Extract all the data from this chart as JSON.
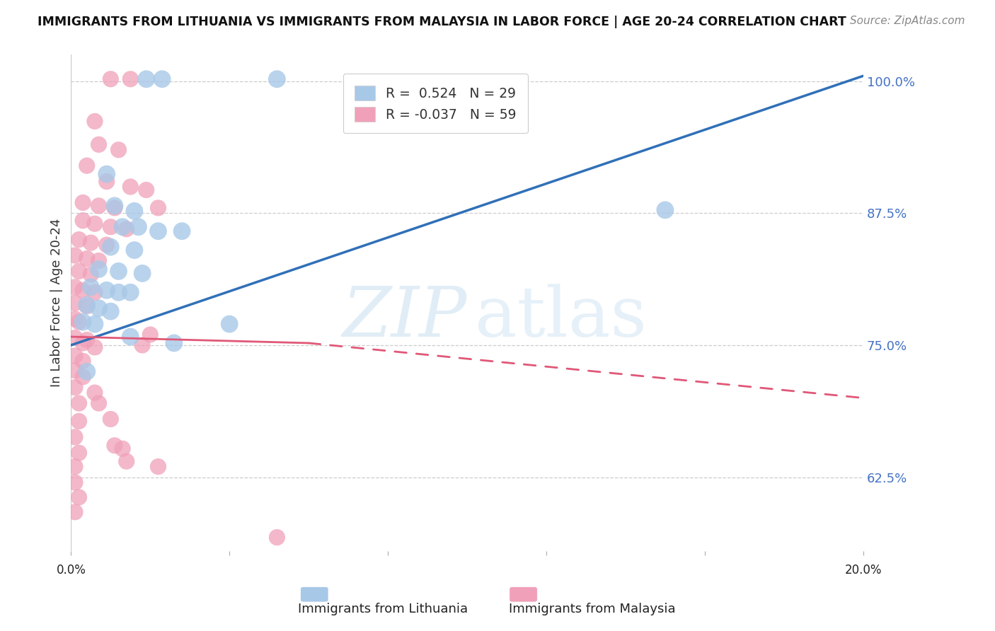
{
  "title": "IMMIGRANTS FROM LITHUANIA VS IMMIGRANTS FROM MALAYSIA IN LABOR FORCE | AGE 20-24 CORRELATION CHART",
  "source": "Source: ZipAtlas.com",
  "ylabel": "In Labor Force | Age 20-24",
  "ylabel_ticks": [
    "100.0%",
    "87.5%",
    "75.0%",
    "62.5%"
  ],
  "ylabel_tick_vals": [
    1.0,
    0.875,
    0.75,
    0.625
  ],
  "xlim": [
    0.0,
    0.2
  ],
  "ylim": [
    0.555,
    1.025
  ],
  "color_blue": "#a8c8e8",
  "color_pink": "#f0a0b8",
  "line_blue": "#3070b8",
  "line_pink": "#e05878",
  "blue_line_x0": 0.0,
  "blue_line_y0": 0.75,
  "blue_line_x1": 0.2,
  "blue_line_y1": 1.005,
  "pink_line_solid_x0": 0.0,
  "pink_line_solid_y0": 0.758,
  "pink_line_solid_x1": 0.06,
  "pink_line_solid_y1": 0.752,
  "pink_line_dash_x0": 0.06,
  "pink_line_dash_y0": 0.752,
  "pink_line_dash_x1": 0.2,
  "pink_line_dash_y1": 0.7,
  "lithuania_points": [
    [
      0.019,
      1.002
    ],
    [
      0.023,
      1.002
    ],
    [
      0.052,
      1.002
    ],
    [
      0.009,
      0.912
    ],
    [
      0.011,
      0.882
    ],
    [
      0.016,
      0.877
    ],
    [
      0.013,
      0.862
    ],
    [
      0.017,
      0.862
    ],
    [
      0.022,
      0.858
    ],
    [
      0.028,
      0.858
    ],
    [
      0.01,
      0.843
    ],
    [
      0.016,
      0.84
    ],
    [
      0.007,
      0.822
    ],
    [
      0.012,
      0.82
    ],
    [
      0.018,
      0.818
    ],
    [
      0.005,
      0.805
    ],
    [
      0.009,
      0.802
    ],
    [
      0.012,
      0.8
    ],
    [
      0.015,
      0.8
    ],
    [
      0.004,
      0.788
    ],
    [
      0.007,
      0.785
    ],
    [
      0.01,
      0.782
    ],
    [
      0.003,
      0.772
    ],
    [
      0.006,
      0.77
    ],
    [
      0.015,
      0.758
    ],
    [
      0.026,
      0.752
    ],
    [
      0.004,
      0.725
    ],
    [
      0.15,
      0.878
    ],
    [
      0.04,
      0.77
    ]
  ],
  "malaysia_points": [
    [
      0.01,
      1.002
    ],
    [
      0.015,
      1.002
    ],
    [
      0.006,
      0.962
    ],
    [
      0.007,
      0.94
    ],
    [
      0.012,
      0.935
    ],
    [
      0.004,
      0.92
    ],
    [
      0.009,
      0.905
    ],
    [
      0.015,
      0.9
    ],
    [
      0.019,
      0.897
    ],
    [
      0.003,
      0.885
    ],
    [
      0.007,
      0.882
    ],
    [
      0.011,
      0.88
    ],
    [
      0.022,
      0.88
    ],
    [
      0.003,
      0.868
    ],
    [
      0.006,
      0.865
    ],
    [
      0.01,
      0.862
    ],
    [
      0.014,
      0.86
    ],
    [
      0.002,
      0.85
    ],
    [
      0.005,
      0.847
    ],
    [
      0.009,
      0.845
    ],
    [
      0.001,
      0.835
    ],
    [
      0.004,
      0.832
    ],
    [
      0.007,
      0.83
    ],
    [
      0.002,
      0.82
    ],
    [
      0.005,
      0.817
    ],
    [
      0.001,
      0.805
    ],
    [
      0.003,
      0.802
    ],
    [
      0.006,
      0.8
    ],
    [
      0.001,
      0.79
    ],
    [
      0.004,
      0.787
    ],
    [
      0.001,
      0.775
    ],
    [
      0.002,
      0.772
    ],
    [
      0.001,
      0.757
    ],
    [
      0.004,
      0.755
    ],
    [
      0.001,
      0.74
    ],
    [
      0.001,
      0.726
    ],
    [
      0.001,
      0.71
    ],
    [
      0.002,
      0.695
    ],
    [
      0.002,
      0.678
    ],
    [
      0.001,
      0.663
    ],
    [
      0.002,
      0.648
    ],
    [
      0.001,
      0.635
    ],
    [
      0.001,
      0.62
    ],
    [
      0.002,
      0.606
    ],
    [
      0.001,
      0.592
    ],
    [
      0.052,
      0.568
    ],
    [
      0.011,
      0.655
    ],
    [
      0.013,
      0.652
    ],
    [
      0.003,
      0.752
    ],
    [
      0.006,
      0.748
    ],
    [
      0.018,
      0.75
    ],
    [
      0.02,
      0.76
    ],
    [
      0.003,
      0.72
    ],
    [
      0.006,
      0.705
    ],
    [
      0.014,
      0.64
    ],
    [
      0.022,
      0.635
    ],
    [
      0.01,
      0.68
    ],
    [
      0.007,
      0.695
    ],
    [
      0.003,
      0.735
    ]
  ]
}
